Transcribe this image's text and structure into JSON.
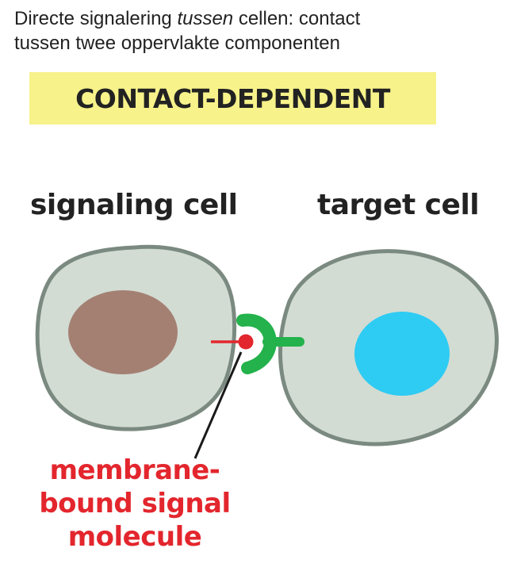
{
  "caption": {
    "line1_pre": "Directe signalering ",
    "line1_em": "tussen",
    "line1_post": " cellen: contact",
    "line2": "tussen twee oppervlakte componenten"
  },
  "banner": {
    "label": "CONTACT-DEPENDENT"
  },
  "cells": {
    "signaling_label": "signaling cell",
    "target_label": "target cell"
  },
  "molecule_label": {
    "line1": "membrane-",
    "line2": "bound signal",
    "line3": "molecule"
  },
  "colors": {
    "banner": "#f7f28a",
    "cell_fill": "#d2dcd3",
    "cell_stroke": "#7b8a80",
    "signaling_nucleus": "#a48073",
    "target_nucleus": "#2ecbf3",
    "signal_molecule": "#e3262d",
    "receptor": "#23b24b"
  }
}
